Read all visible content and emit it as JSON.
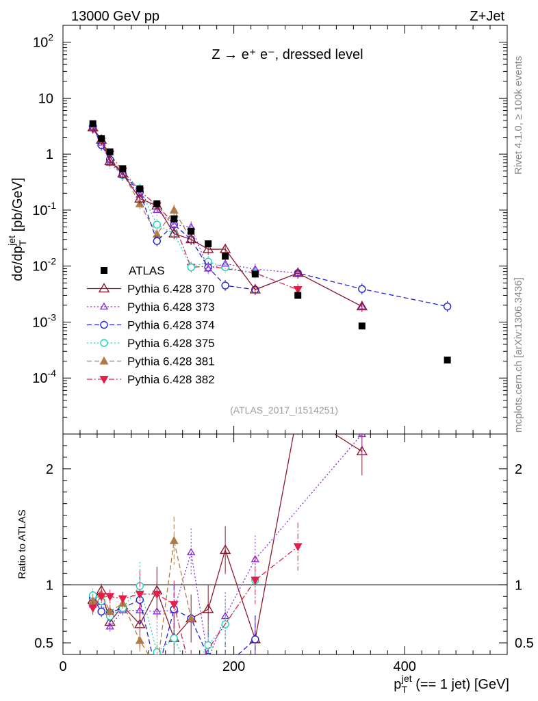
{
  "header": {
    "left": "13000 GeV pp",
    "right": "Z+Jet"
  },
  "side_labels": {
    "rivet": "Rivet 4.1.0, ≥ 100k events",
    "mcplots": "mcplots.cern.ch [arXiv:1306.3436]"
  },
  "chart_data": [
    {
      "type": "line",
      "panel": "main",
      "title": "Z → e⁺ e⁻, dressed level",
      "analysis_label": "(ATLAS_2017_I1514251)",
      "ylabel": "dσ/dp_T^jet [pb/GeV]",
      "yscale": "log",
      "ylim": [
        1e-05,
        200
      ],
      "xlim": [
        0,
        520
      ],
      "ytick_labels": [
        "10^-4",
        "10^-3",
        "10^-2",
        "10^-1",
        "1",
        "10",
        "10^2"
      ],
      "legend_position": "middle-left",
      "series": [
        {
          "name": "ATLAS",
          "color": "#000000",
          "marker": "square",
          "style": "none",
          "x": [
            35,
            45,
            55,
            70,
            90,
            110,
            130,
            150,
            170,
            190,
            225,
            275,
            350,
            450
          ],
          "y": [
            3.5,
            1.9,
            1.1,
            0.55,
            0.24,
            0.13,
            0.07,
            0.042,
            0.025,
            0.015,
            0.0072,
            0.003,
            0.00085,
            0.00021
          ]
        },
        {
          "name": "Pythia 6.428 370",
          "color": "#8b1a2e",
          "marker": "triangle-open",
          "style": "solid",
          "x": [
            35,
            45,
            55,
            70,
            90,
            110,
            130,
            150,
            170,
            190,
            225,
            275,
            350
          ],
          "y": [
            3.0,
            1.8,
            0.75,
            0.45,
            0.16,
            0.12,
            0.038,
            0.03,
            0.02,
            0.02,
            0.0038,
            0.0075,
            0.0019
          ]
        },
        {
          "name": "Pythia 6.428 373",
          "color": "#8a2be2",
          "marker": "triangle-open-small",
          "style": "dotted",
          "x": [
            35,
            45,
            55,
            70,
            90,
            110,
            130,
            150,
            170,
            190,
            225,
            275,
            350
          ],
          "y": [
            2.9,
            1.6,
            0.7,
            0.42,
            0.19,
            0.1,
            0.055,
            0.05,
            0.009,
            0.011,
            0.0088,
            0.0075,
            0.0019
          ]
        },
        {
          "name": "Pythia 6.428 374",
          "color": "#1f1fd6",
          "marker": "circle-open",
          "style": "dashed",
          "x": [
            35,
            45,
            55,
            70,
            90,
            110,
            130,
            150,
            170,
            190,
            225,
            275,
            350,
            450
          ],
          "y": [
            3.1,
            1.45,
            0.8,
            0.44,
            0.21,
            0.028,
            0.055,
            0.03,
            0.0095,
            0.0045,
            0.0038,
            0.0075,
            0.0039,
            0.0019
          ]
        },
        {
          "name": "Pythia 6.428 375",
          "color": "#19d3c1",
          "marker": "circle-open",
          "style": "dotted",
          "x": [
            35,
            45,
            55,
            70,
            90,
            110,
            130,
            150,
            170,
            190,
            225
          ],
          "y": [
            3.2,
            1.6,
            0.8,
            0.42,
            0.24,
            0.055,
            0.038,
            0.0095,
            0.012,
            0.0095,
            0.0075
          ]
        },
        {
          "name": "Pythia 6.428 381",
          "color": "#b07a4a",
          "marker": "triangle-filled",
          "style": "dashed",
          "x": [
            35,
            45,
            55,
            70,
            90,
            110,
            130,
            150
          ],
          "y": [
            3.0,
            1.75,
            0.85,
            0.46,
            0.13,
            0.037,
            0.1,
            0.03
          ]
        },
        {
          "name": "Pythia 6.428 382",
          "color": "#e0204a",
          "marker": "triangle-down-filled",
          "style": "dashdot",
          "x": [
            35,
            45,
            55,
            70,
            90,
            110,
            130,
            150,
            170,
            225,
            275
          ],
          "y": [
            2.8,
            1.7,
            1.0,
            0.5,
            0.22,
            0.12,
            0.058,
            0.0095,
            0.01,
            0.0075,
            0.0038
          ]
        }
      ]
    },
    {
      "type": "line",
      "panel": "ratio",
      "ylabel": "Ratio to ATLAS",
      "xlabel": "p_T^jet (== 1 jet) [GeV]",
      "xlim": [
        0,
        520
      ],
      "ylim": [
        0.4,
        2.3
      ],
      "xtick_labels": [
        "0",
        "200",
        "400"
      ],
      "ytick_labels": [
        "0.5",
        "1",
        "2"
      ],
      "series": [
        {
          "name": "Pythia 6.428 370",
          "x": [
            35,
            45,
            55,
            70,
            90,
            110,
            130,
            150,
            170,
            190,
            225,
            275,
            350
          ],
          "y": [
            0.87,
            0.95,
            0.68,
            0.82,
            0.66,
            0.95,
            0.54,
            0.71,
            0.79,
            1.3,
            0.53,
            2.5,
            2.15
          ]
        },
        {
          "name": "Pythia 6.428 373",
          "x": [
            35,
            45,
            55,
            70,
            90,
            110,
            130,
            150,
            170,
            190,
            225,
            350
          ],
          "y": [
            0.83,
            0.85,
            0.64,
            0.78,
            0.78,
            0.77,
            0.78,
            1.28,
            0.36,
            0.73,
            1.22,
            2.3
          ]
        },
        {
          "name": "Pythia 6.428 374",
          "x": [
            35,
            45,
            55,
            70,
            90,
            110,
            130,
            150,
            170,
            190,
            225
          ],
          "y": [
            0.89,
            0.77,
            0.76,
            0.8,
            0.87,
            0.22,
            0.79,
            0.71,
            0.38,
            0.3,
            0.53
          ]
        },
        {
          "name": "Pythia 6.428 375",
          "x": [
            35,
            45,
            55,
            70,
            90,
            110,
            130,
            150,
            170,
            190,
            225
          ],
          "y": [
            0.91,
            0.86,
            0.73,
            0.8,
            0.99,
            0.42,
            0.54,
            0.23,
            0.48,
            0.66,
            1.04
          ]
        },
        {
          "name": "Pythia 6.428 381",
          "x": [
            35,
            45,
            55,
            70,
            90,
            110,
            130,
            150
          ],
          "y": [
            0.86,
            0.92,
            0.77,
            0.84,
            0.52,
            0.28,
            1.38,
            0.71
          ]
        },
        {
          "name": "Pythia 6.428 382",
          "x": [
            35,
            45,
            55,
            70,
            90,
            110,
            130,
            150,
            225,
            275
          ],
          "y": [
            0.8,
            0.9,
            0.9,
            0.88,
            0.92,
            0.92,
            0.83,
            0.23,
            1.04,
            1.33
          ]
        }
      ]
    }
  ]
}
